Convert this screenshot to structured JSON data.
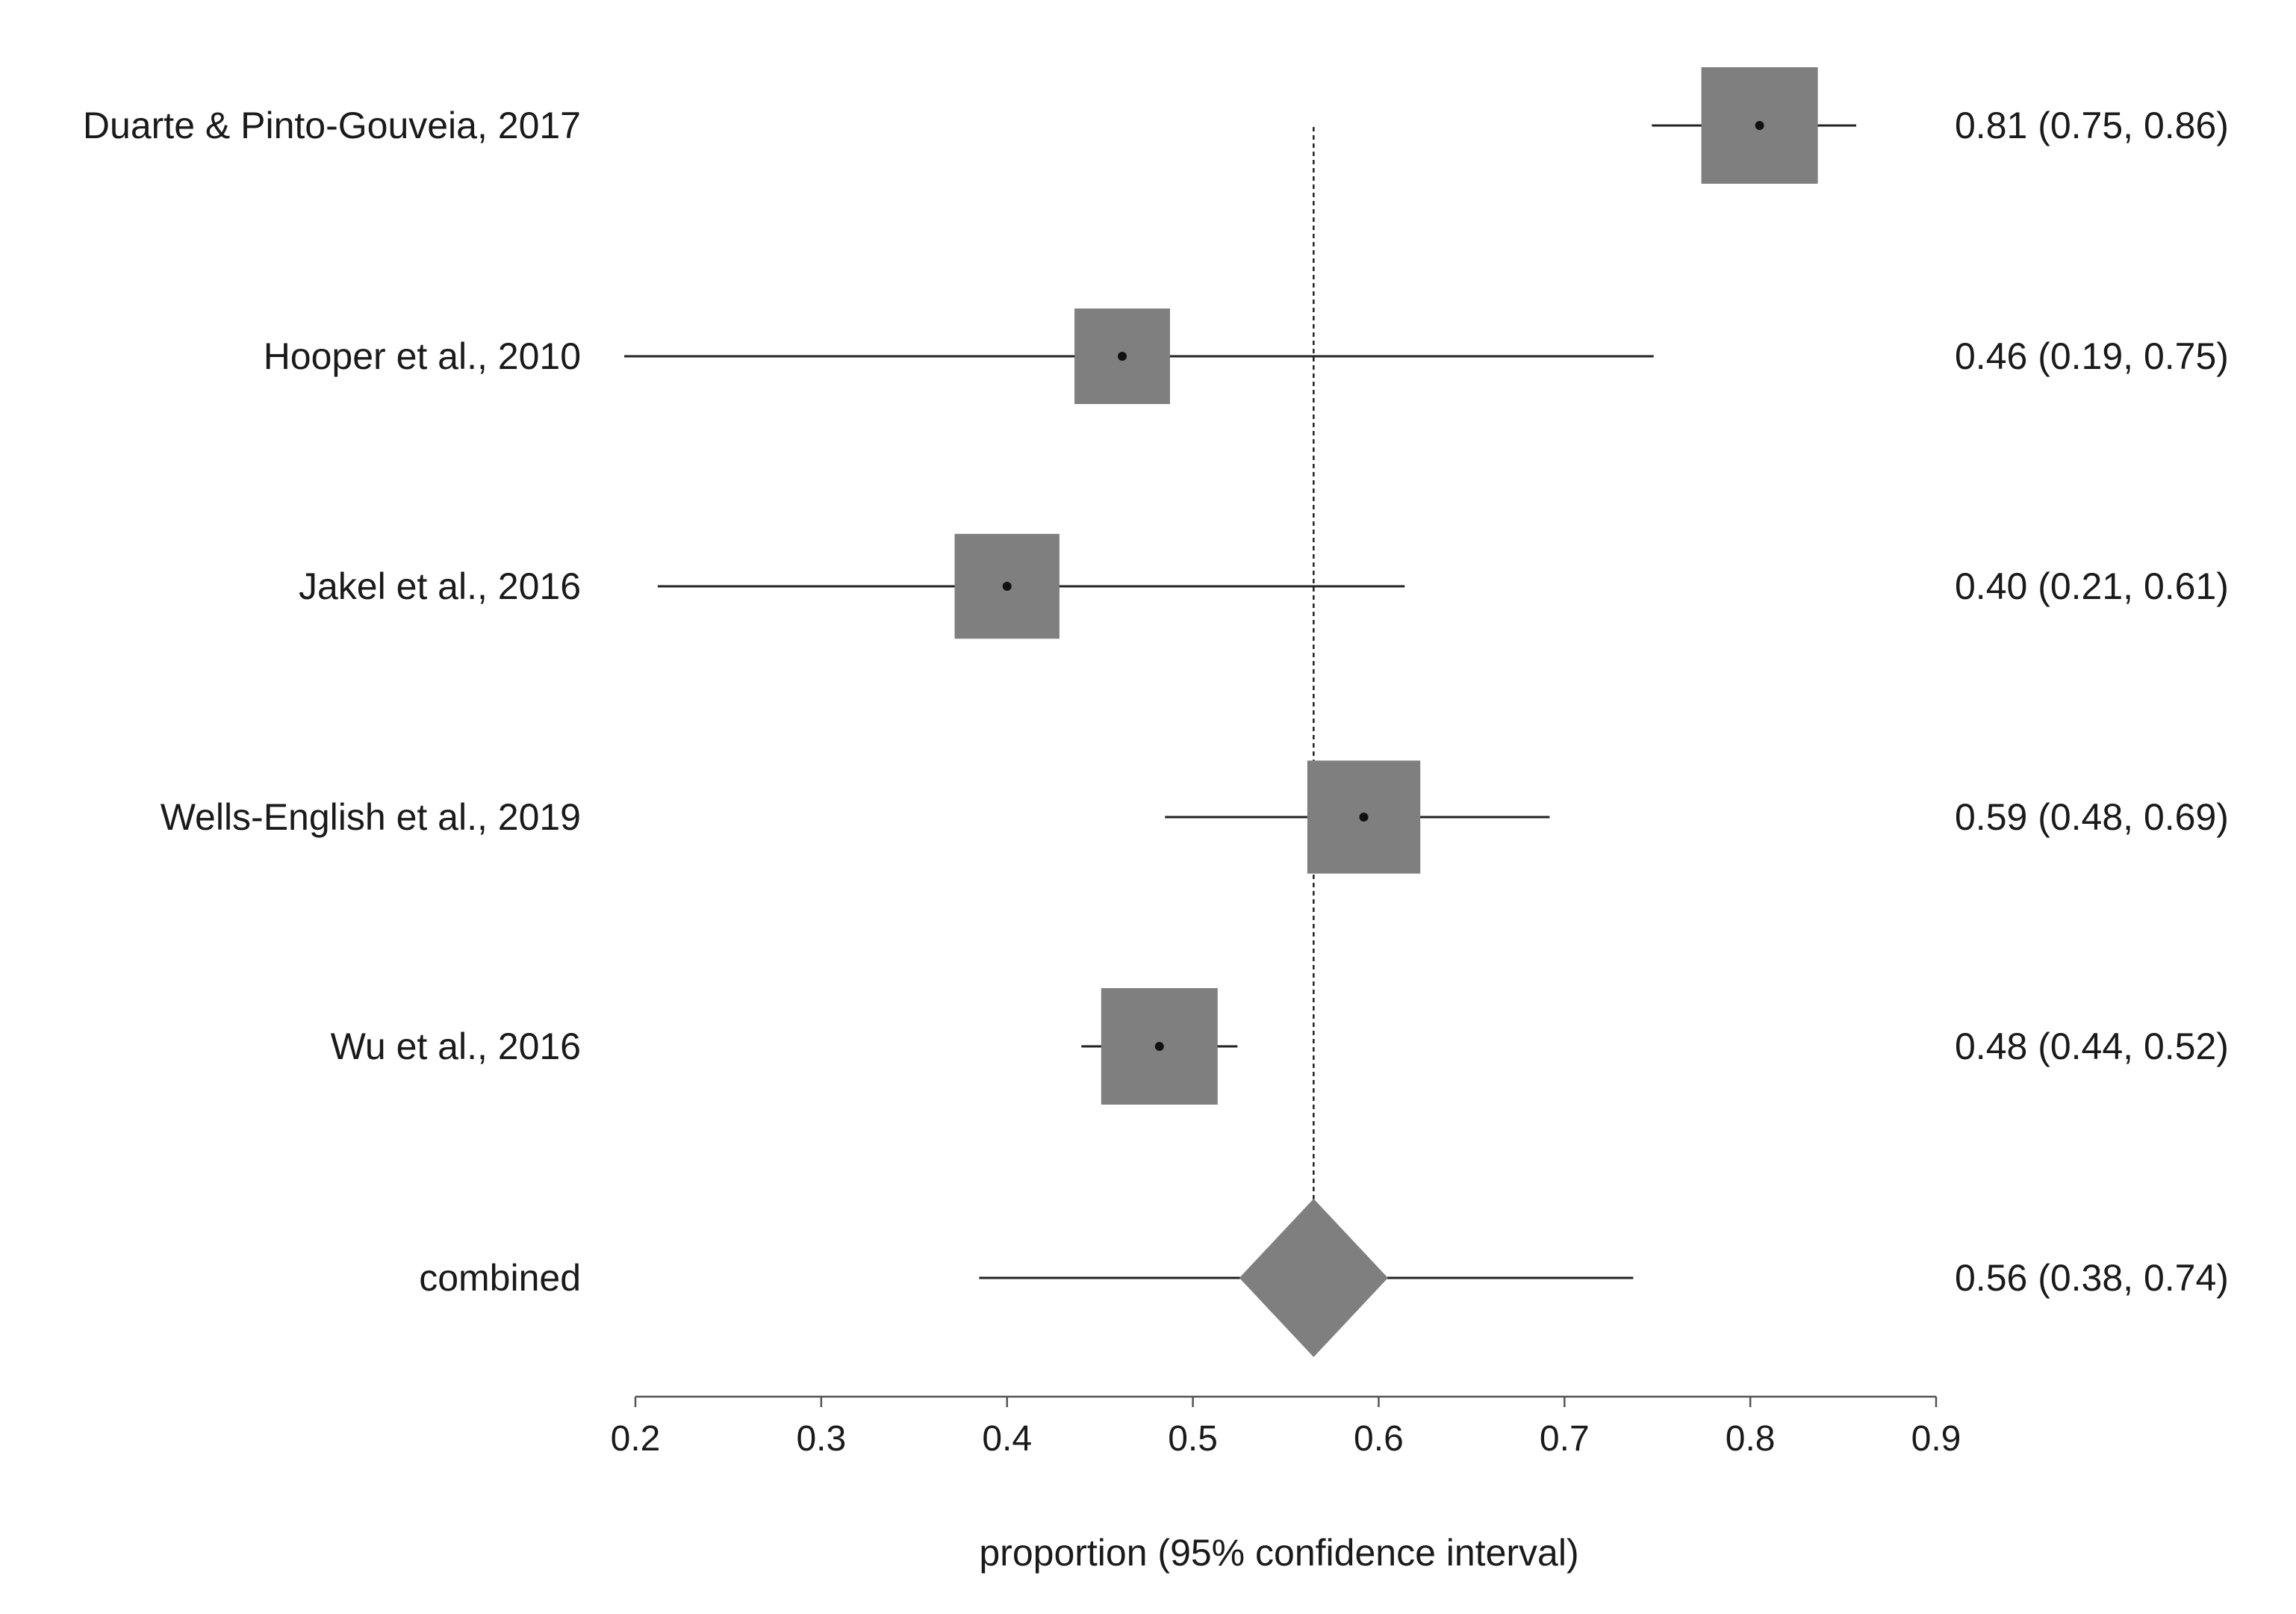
{
  "chart_data": {
    "type": "forest",
    "xlabel": "proportion (95% confidence interval)",
    "xlim": [
      0.2,
      0.9
    ],
    "ticks": [
      0.2,
      0.3,
      0.4,
      0.5,
      0.6,
      0.7,
      0.8,
      0.9
    ],
    "tick_labels": [
      "0.2",
      "0.3",
      "0.4",
      "0.5",
      "0.6",
      "0.7",
      "0.8",
      "0.9"
    ],
    "reference_line": 0.565,
    "studies": [
      {
        "label": "Duarte & Pinto-Gouveia, 2017",
        "estimate": 0.805,
        "lower": 0.747,
        "upper": 0.857,
        "ci_text": "0.81 (0.75, 0.86)",
        "weight": 1.0
      },
      {
        "label": "Hooper et al., 2010",
        "estimate": 0.462,
        "lower": 0.194,
        "upper": 0.748,
        "ci_text": "0.46 (0.19, 0.75)",
        "weight": 0.82
      },
      {
        "label": "Jakel et al., 2016",
        "estimate": 0.4,
        "lower": 0.212,
        "upper": 0.614,
        "ci_text": "0.40 (0.21, 0.61)",
        "weight": 0.9
      },
      {
        "label": "Wells-English et al., 2019",
        "estimate": 0.592,
        "lower": 0.485,
        "upper": 0.692,
        "ci_text": "0.59 (0.48, 0.69)",
        "weight": 0.97
      },
      {
        "label": "Wu et al., 2016",
        "estimate": 0.482,
        "lower": 0.44,
        "upper": 0.524,
        "ci_text": "0.48 (0.44, 0.52)",
        "weight": 1.0
      }
    ],
    "combined": {
      "label": "combined",
      "estimate": 0.565,
      "lower": 0.385,
      "upper": 0.737,
      "diamond_lower": 0.525,
      "diamond_upper": 0.605,
      "ci_text": "0.56 (0.38, 0.74)"
    }
  },
  "colors": {
    "marker_fill": "#7f7f7f",
    "line": "#222222",
    "axis": "#555555",
    "text": "#1a1a1a"
  }
}
